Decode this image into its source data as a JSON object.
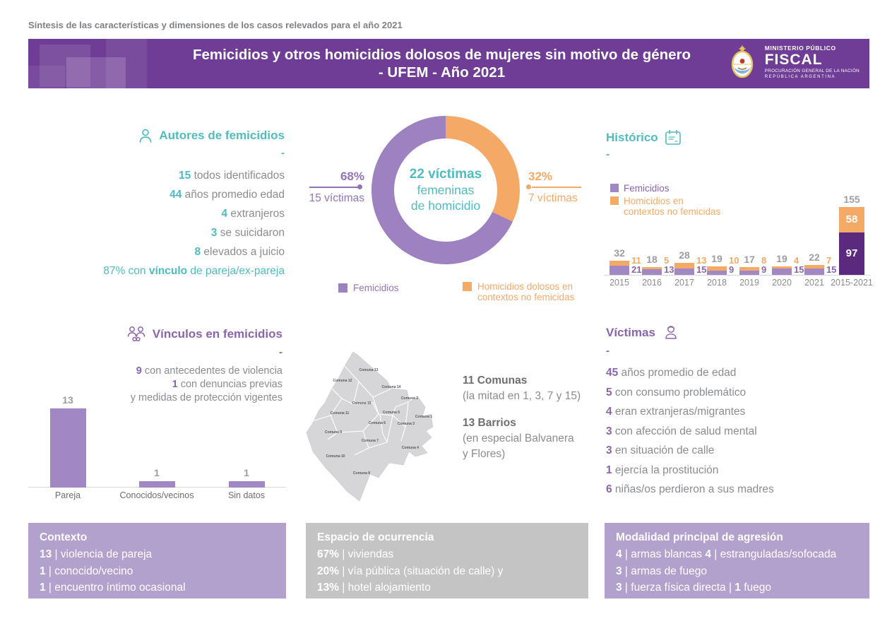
{
  "top_note": "Síntesis de las características y dimensiones de los casos relevados para el año 2021",
  "header": {
    "title_line1": "Femicidios y otros homicidios dolosos de mujeres sin motivo de género",
    "title_line2": "- UFEM - Año 2021",
    "logo": {
      "line1": "MINISTERIO PÚBLICO",
      "line2": "FISCAL",
      "line3": "PROCURACIÓN GENERAL DE LA NACIÓN",
      "line4": "REPÚBLICA ARGENTINA"
    }
  },
  "colors": {
    "header_purple": "#6f3d96",
    "purple_bar": "#a287c5",
    "purple_dark": "#5b2a7e",
    "purple_text": "#8a65ad",
    "orange": "#f5a966",
    "teal": "#4fbcbf",
    "gray_text": "#8a8c8f",
    "box_purple": "#b2a0cd",
    "box_gray": "#c5c4c4"
  },
  "autores": {
    "title": "Autores de femicidios",
    "dash": "-",
    "lines": [
      [
        {
          "b": "15"
        },
        {
          "t": " todos identificados"
        }
      ],
      [
        {
          "b": "44"
        },
        {
          "t": " años promedio edad"
        }
      ],
      [
        {
          "b": "4"
        },
        {
          "t": " extranjeros"
        }
      ],
      [
        {
          "b": "3"
        },
        {
          "t": " se suicidaron"
        }
      ],
      [
        {
          "b": "8"
        },
        {
          "t": " elevados a juicio"
        }
      ]
    ],
    "highlight": [
      {
        "t": "87% con "
      },
      {
        "b": "vínculo"
      },
      {
        "t": " de pareja/ex-pareja"
      }
    ]
  },
  "donut": {
    "center_line1": "22 víctimas",
    "center_line2": "femeninas",
    "center_line3": "de homicidio",
    "left_pct": "68%",
    "left_label": "15 víctimas",
    "right_pct": "32%",
    "right_label": "7 víctimas",
    "legend_1": "Femicidios",
    "legend_2": "Homicidios dolosos en\ncontextos no femicidas"
  },
  "historico": {
    "title": "Histórico",
    "dash": "-",
    "legend_1": "Femicidios",
    "legend_2": "Homicidios en\ncontextos no femicidas"
  },
  "vinculos": {
    "title": "Vínculos en femicidios",
    "dash": "-",
    "lines": [
      [
        {
          "b": "9"
        },
        {
          "t": " con antecedentes de violencia"
        }
      ],
      [
        {
          "b": "1"
        },
        {
          "t": " con denuncias previas"
        }
      ],
      [
        {
          "t": "y medidas de protección vigentes"
        }
      ]
    ]
  },
  "map_section": {
    "labels": [
      "Comuna 13",
      "Comuna 12",
      "Comuna 14",
      "Comuna 2",
      "Comuna 15",
      "Comuna 11",
      "Comuna 5",
      "Comuna 1",
      "Comuna 6",
      "Comuna 3",
      "Comuna 9",
      "Comuna 7",
      "Comuna 4",
      "Comuna 10",
      "Comuna 8"
    ],
    "comunas_title": "11 Comunas",
    "comunas_sub": "(la mitad en 1, 3, 7 y 15)",
    "barrios_title": "13 Barrios",
    "barrios_sub": "(en especial Balvanera\ny Flores)"
  },
  "victimas": {
    "title": "Víctimas",
    "dash": "-",
    "lines": [
      [
        {
          "b": "45"
        },
        {
          "t": " años promedio de edad"
        }
      ],
      [
        {
          "b": "5"
        },
        {
          "t": " con consumo problemático"
        }
      ],
      [
        {
          "b": "4"
        },
        {
          "t": " eran extranjeras/migrantes"
        }
      ],
      [
        {
          "b": "3"
        },
        {
          "t": " con afección de salud mental"
        }
      ],
      [
        {
          "b": "3"
        },
        {
          "t": " en situación de calle"
        }
      ],
      [
        {
          "b": "1"
        },
        {
          "t": " ejercía la prostitución"
        }
      ],
      [
        {
          "b": "6"
        },
        {
          "t": " niñas/os perdieron a sus madres"
        }
      ]
    ]
  },
  "boxes": {
    "contexto": {
      "title": "Contexto",
      "rows": [
        [
          {
            "b": "13"
          },
          {
            "t": " | violencia de pareja"
          }
        ],
        [
          {
            "b": "1"
          },
          {
            "t": " | conocido/vecino"
          }
        ],
        [
          {
            "b": "1"
          },
          {
            "t": " | encuentro íntimo ocasional"
          }
        ]
      ]
    },
    "espacio": {
      "title": "Espacio de ocurrencia",
      "rows": [
        [
          {
            "b": "67%"
          },
          {
            "t": " | viviendas"
          }
        ],
        [
          {
            "b": "20%"
          },
          {
            "t": " | vía pública (situación de calle) y"
          }
        ],
        [
          {
            "b": "13%"
          },
          {
            "t": " | hotel alojamiento"
          }
        ]
      ]
    },
    "modalidad": {
      "title": "Modalidad principal de agresión",
      "rows": [
        [
          {
            "b": "4"
          },
          {
            "t": " | armas blancas "
          },
          {
            "b": "4"
          },
          {
            "t": " | estranguladas/sofocada"
          }
        ],
        [
          {
            "b": "3"
          },
          {
            "t": " | armas de fuego"
          }
        ],
        [
          {
            "b": "3"
          },
          {
            "t": " | fuerza física directa | "
          },
          {
            "b": "1"
          },
          {
            "t": " fuego"
          }
        ]
      ]
    }
  },
  "chart_data": [
    {
      "type": "pie",
      "subtype": "donut",
      "title": "22 víctimas femeninas de homicidio",
      "labels": [
        "Femicidios",
        "Homicidios dolosos en contextos no femicidas"
      ],
      "values": [
        15,
        7
      ],
      "percents": [
        68,
        32
      ],
      "colors": [
        "#9d81c1",
        "#f5a966"
      ],
      "legend_position": "bottom"
    },
    {
      "type": "bar",
      "subtype": "stacked",
      "title": "Histórico",
      "categories": [
        "2015",
        "2016",
        "2017",
        "2018",
        "2019",
        "2020",
        "2021",
        "2015-2021"
      ],
      "series": [
        {
          "name": "Femicidios",
          "values": [
            21,
            13,
            15,
            9,
            9,
            15,
            15,
            97
          ]
        },
        {
          "name": "Homicidios en contextos no femicidas",
          "values": [
            11,
            5,
            13,
            10,
            8,
            4,
            7,
            58
          ]
        }
      ],
      "totals": [
        32,
        18,
        28,
        19,
        17,
        19,
        22,
        155
      ],
      "ylim": [
        0,
        160
      ],
      "grid": false,
      "legend_position": "top-left"
    },
    {
      "type": "bar",
      "title": "Vínculos en femicidios",
      "categories": [
        "Pareja",
        "Conocidos/vecinos",
        "Sin datos"
      ],
      "values": [
        13,
        1,
        1
      ],
      "ylim": [
        0,
        14
      ],
      "grid": false
    }
  ]
}
